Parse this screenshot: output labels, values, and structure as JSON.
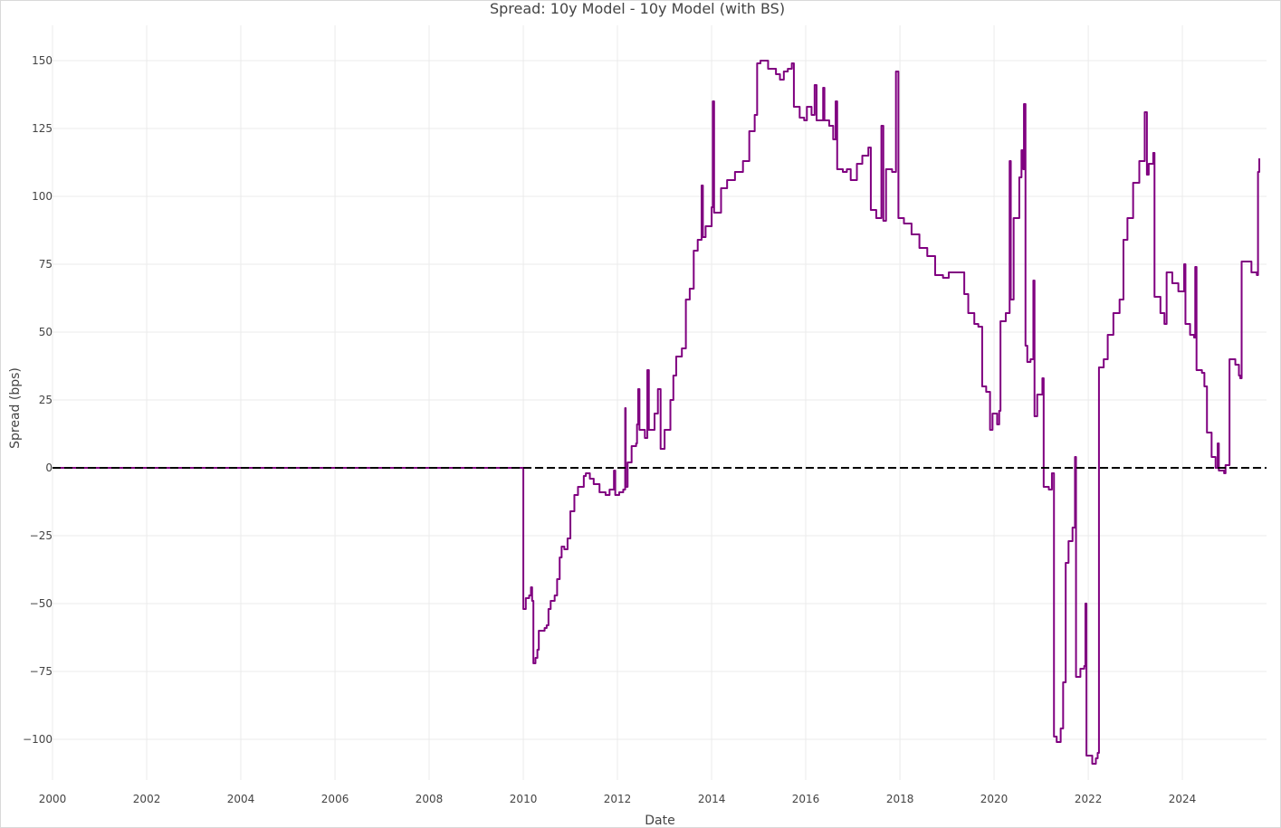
{
  "chart_data": {
    "type": "line",
    "title": "Spread: 10y Model - 10y Model (with BS)",
    "xlabel": "Date",
    "ylabel": "Spread (bps)",
    "xlim": [
      "2000-01-01",
      "2025-10-15"
    ],
    "ylim": [
      -115,
      163
    ],
    "x_ticks": [
      "2000",
      "2002",
      "2004",
      "2006",
      "2008",
      "2010",
      "2012",
      "2014",
      "2016",
      "2018",
      "2020",
      "2022",
      "2024"
    ],
    "y_ticks": [
      "150",
      "125",
      "100",
      "75",
      "50",
      "25",
      "0",
      "−25",
      "−50",
      "−75",
      "−100"
    ],
    "grid": true,
    "reference_line": {
      "y": 0,
      "style": "dashed",
      "color": "#000000"
    },
    "series": [
      {
        "color": "#800080",
        "points": [
          [
            "2000-01-01",
            0
          ],
          [
            "2009-12-31",
            0
          ],
          [
            "2010-01-01",
            -52
          ],
          [
            "2010-01-20",
            -48
          ],
          [
            "2010-02-15",
            -47
          ],
          [
            "2010-03-01",
            -44
          ],
          [
            "2010-03-10",
            -49
          ],
          [
            "2010-03-20",
            -72
          ],
          [
            "2010-04-05",
            -70
          ],
          [
            "2010-04-20",
            -67
          ],
          [
            "2010-05-01",
            -60
          ],
          [
            "2010-06-15",
            -59
          ],
          [
            "2010-07-01",
            -58
          ],
          [
            "2010-07-15",
            -52
          ],
          [
            "2010-08-01",
            -49
          ],
          [
            "2010-09-01",
            -47
          ],
          [
            "2010-09-20",
            -41
          ],
          [
            "2010-10-10",
            -33
          ],
          [
            "2010-10-25",
            -29
          ],
          [
            "2010-11-15",
            -30
          ],
          [
            "2010-12-10",
            -26
          ],
          [
            "2011-01-01",
            -16
          ],
          [
            "2011-02-01",
            -10
          ],
          [
            "2011-03-01",
            -7
          ],
          [
            "2011-04-15",
            -3
          ],
          [
            "2011-05-01",
            -2
          ],
          [
            "2011-06-01",
            -4
          ],
          [
            "2011-07-01",
            -6
          ],
          [
            "2011-08-15",
            -9
          ],
          [
            "2011-10-01",
            -10
          ],
          [
            "2011-11-01",
            -8
          ],
          [
            "2011-12-05",
            -1
          ],
          [
            "2011-12-15",
            -10
          ],
          [
            "2012-01-15",
            -9
          ],
          [
            "2012-02-15",
            -8
          ],
          [
            "2012-03-01",
            22
          ],
          [
            "2012-03-05",
            -7
          ],
          [
            "2012-03-20",
            2
          ],
          [
            "2012-04-20",
            8
          ],
          [
            "2012-05-25",
            9
          ],
          [
            "2012-06-01",
            16
          ],
          [
            "2012-06-10",
            29
          ],
          [
            "2012-06-20",
            14
          ],
          [
            "2012-08-01",
            11
          ],
          [
            "2012-08-20",
            36
          ],
          [
            "2012-09-01",
            14
          ],
          [
            "2012-10-15",
            20
          ],
          [
            "2012-11-10",
            29
          ],
          [
            "2012-12-01",
            7
          ],
          [
            "2013-01-01",
            14
          ],
          [
            "2013-02-15",
            25
          ],
          [
            "2013-03-10",
            34
          ],
          [
            "2013-04-01",
            41
          ],
          [
            "2013-05-15",
            44
          ],
          [
            "2013-06-15",
            62
          ],
          [
            "2013-07-15",
            66
          ],
          [
            "2013-08-15",
            80
          ],
          [
            "2013-09-15",
            84
          ],
          [
            "2013-10-15",
            104
          ],
          [
            "2013-10-25",
            85
          ],
          [
            "2013-11-15",
            89
          ],
          [
            "2014-01-01",
            96
          ],
          [
            "2014-01-10",
            135
          ],
          [
            "2014-01-20",
            94
          ],
          [
            "2014-03-15",
            103
          ],
          [
            "2014-05-01",
            106
          ],
          [
            "2014-07-01",
            109
          ],
          [
            "2014-09-01",
            113
          ],
          [
            "2014-10-20",
            124
          ],
          [
            "2014-12-01",
            130
          ],
          [
            "2014-12-20",
            149
          ],
          [
            "2015-01-15",
            150
          ],
          [
            "2015-03-15",
            147
          ],
          [
            "2015-05-15",
            145
          ],
          [
            "2015-06-15",
            143
          ],
          [
            "2015-07-15",
            146
          ],
          [
            "2015-08-15",
            147
          ],
          [
            "2015-09-15",
            149
          ],
          [
            "2015-10-01",
            133
          ],
          [
            "2015-11-15",
            129
          ],
          [
            "2015-12-20",
            128
          ],
          [
            "2016-01-10",
            133
          ],
          [
            "2016-02-15",
            130
          ],
          [
            "2016-03-10",
            141
          ],
          [
            "2016-03-25",
            128
          ],
          [
            "2016-05-01",
            128
          ],
          [
            "2016-05-15",
            140
          ],
          [
            "2016-05-25",
            128
          ],
          [
            "2016-07-01",
            126
          ],
          [
            "2016-08-01",
            121
          ],
          [
            "2016-08-20",
            135
          ],
          [
            "2016-09-01",
            110
          ],
          [
            "2016-10-15",
            109
          ],
          [
            "2016-11-15",
            110
          ],
          [
            "2016-12-15",
            106
          ],
          [
            "2017-02-01",
            112
          ],
          [
            "2017-03-15",
            115
          ],
          [
            "2017-05-01",
            118
          ],
          [
            "2017-05-20",
            95
          ],
          [
            "2017-07-01",
            92
          ],
          [
            "2017-08-10",
            126
          ],
          [
            "2017-08-25",
            91
          ],
          [
            "2017-09-15",
            110
          ],
          [
            "2017-11-01",
            109
          ],
          [
            "2017-12-01",
            146
          ],
          [
            "2017-12-20",
            92
          ],
          [
            "2018-02-01",
            90
          ],
          [
            "2018-04-01",
            86
          ],
          [
            "2018-06-01",
            81
          ],
          [
            "2018-08-01",
            78
          ],
          [
            "2018-10-01",
            71
          ],
          [
            "2018-12-01",
            70
          ],
          [
            "2019-01-15",
            72
          ],
          [
            "2019-04-01",
            72
          ],
          [
            "2019-05-15",
            64
          ],
          [
            "2019-06-15",
            57
          ],
          [
            "2019-08-01",
            53
          ],
          [
            "2019-09-01",
            52
          ],
          [
            "2019-10-01",
            30
          ],
          [
            "2019-11-01",
            28
          ],
          [
            "2019-12-01",
            14
          ],
          [
            "2019-12-20",
            20
          ],
          [
            "2020-01-25",
            16
          ],
          [
            "2020-02-10",
            21
          ],
          [
            "2020-02-20",
            54
          ],
          [
            "2020-04-01",
            57
          ],
          [
            "2020-05-01",
            113
          ],
          [
            "2020-05-10",
            62
          ],
          [
            "2020-06-01",
            92
          ],
          [
            "2020-07-15",
            107
          ],
          [
            "2020-08-01",
            117
          ],
          [
            "2020-08-15",
            110
          ],
          [
            "2020-08-20",
            134
          ],
          [
            "2020-09-01",
            45
          ],
          [
            "2020-09-15",
            39
          ],
          [
            "2020-10-10",
            40
          ],
          [
            "2020-11-01",
            69
          ],
          [
            "2020-11-10",
            19
          ],
          [
            "2020-12-01",
            27
          ],
          [
            "2021-01-10",
            33
          ],
          [
            "2021-01-20",
            -7
          ],
          [
            "2021-03-01",
            -8
          ],
          [
            "2021-03-25",
            -2
          ],
          [
            "2021-04-10",
            -99
          ],
          [
            "2021-05-01",
            -101
          ],
          [
            "2021-06-01",
            -96
          ],
          [
            "2021-06-20",
            -79
          ],
          [
            "2021-07-10",
            -35
          ],
          [
            "2021-08-01",
            -27
          ],
          [
            "2021-09-01",
            -22
          ],
          [
            "2021-09-20",
            4
          ],
          [
            "2021-09-28",
            -77
          ],
          [
            "2021-11-01",
            -74
          ],
          [
            "2021-12-01",
            -73
          ],
          [
            "2021-12-10",
            -50
          ],
          [
            "2021-12-18",
            -106
          ],
          [
            "2022-02-01",
            -109
          ],
          [
            "2022-03-01",
            -107
          ],
          [
            "2022-03-15",
            -105
          ],
          [
            "2022-03-25",
            37
          ],
          [
            "2022-05-01",
            40
          ],
          [
            "2022-06-01",
            49
          ],
          [
            "2022-07-15",
            57
          ],
          [
            "2022-09-01",
            62
          ],
          [
            "2022-10-01",
            84
          ],
          [
            "2022-11-01",
            92
          ],
          [
            "2022-12-15",
            105
          ],
          [
            "2023-02-01",
            113
          ],
          [
            "2023-03-15",
            131
          ],
          [
            "2023-04-01",
            108
          ],
          [
            "2023-04-15",
            112
          ],
          [
            "2023-05-20",
            116
          ],
          [
            "2023-05-30",
            63
          ],
          [
            "2023-07-15",
            57
          ],
          [
            "2023-08-15",
            53
          ],
          [
            "2023-09-01",
            72
          ],
          [
            "2023-10-15",
            68
          ],
          [
            "2023-12-01",
            65
          ],
          [
            "2024-01-15",
            75
          ],
          [
            "2024-01-25",
            53
          ],
          [
            "2024-03-01",
            49
          ],
          [
            "2024-04-01",
            48
          ],
          [
            "2024-04-10",
            74
          ],
          [
            "2024-04-20",
            36
          ],
          [
            "2024-06-01",
            35
          ],
          [
            "2024-06-20",
            30
          ],
          [
            "2024-07-10",
            13
          ],
          [
            "2024-08-15",
            4
          ],
          [
            "2024-09-15",
            0
          ],
          [
            "2024-10-01",
            9
          ],
          [
            "2024-10-10",
            -1
          ],
          [
            "2024-11-20",
            -2
          ],
          [
            "2024-12-01",
            1
          ],
          [
            "2024-12-20",
            1
          ],
          [
            "2025-01-01",
            40
          ],
          [
            "2025-02-15",
            38
          ],
          [
            "2025-03-15",
            34
          ],
          [
            "2025-03-25",
            33
          ],
          [
            "2025-04-05",
            76
          ],
          [
            "2025-05-15",
            76
          ],
          [
            "2025-06-20",
            72
          ],
          [
            "2025-08-01",
            71
          ],
          [
            "2025-08-10",
            109
          ],
          [
            "2025-08-20",
            114
          ]
        ]
      }
    ]
  }
}
